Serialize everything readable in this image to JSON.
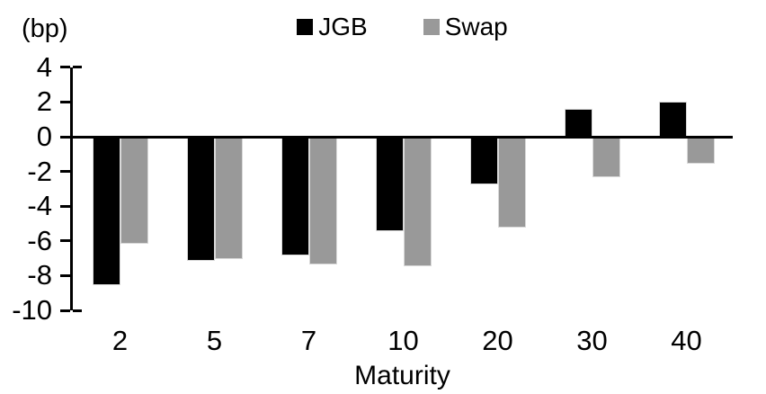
{
  "chart": {
    "unit_label": "(bp)",
    "xlabel": "Maturity"
  },
  "chart_data": {
    "type": "bar",
    "title": "",
    "categories": [
      "2",
      "5",
      "7",
      "10",
      "20",
      "30",
      "40"
    ],
    "series": [
      {
        "name": "JGB",
        "color": "#000000",
        "values": [
          -8.5,
          -7.1,
          -6.8,
          -5.4,
          -2.7,
          1.6,
          2.0
        ]
      },
      {
        "name": "Swap",
        "color": "#999999",
        "values": [
          -6.1,
          -7.0,
          -7.3,
          -7.4,
          -5.2,
          -2.3,
          -1.5
        ]
      }
    ],
    "xlabel": "Maturity",
    "ylabel": "(bp)",
    "ylim": [
      -10,
      4
    ],
    "ytick_step": 2,
    "grid": false,
    "legend_position": "top",
    "background": "#ffffff",
    "axis_color": "#000000"
  }
}
